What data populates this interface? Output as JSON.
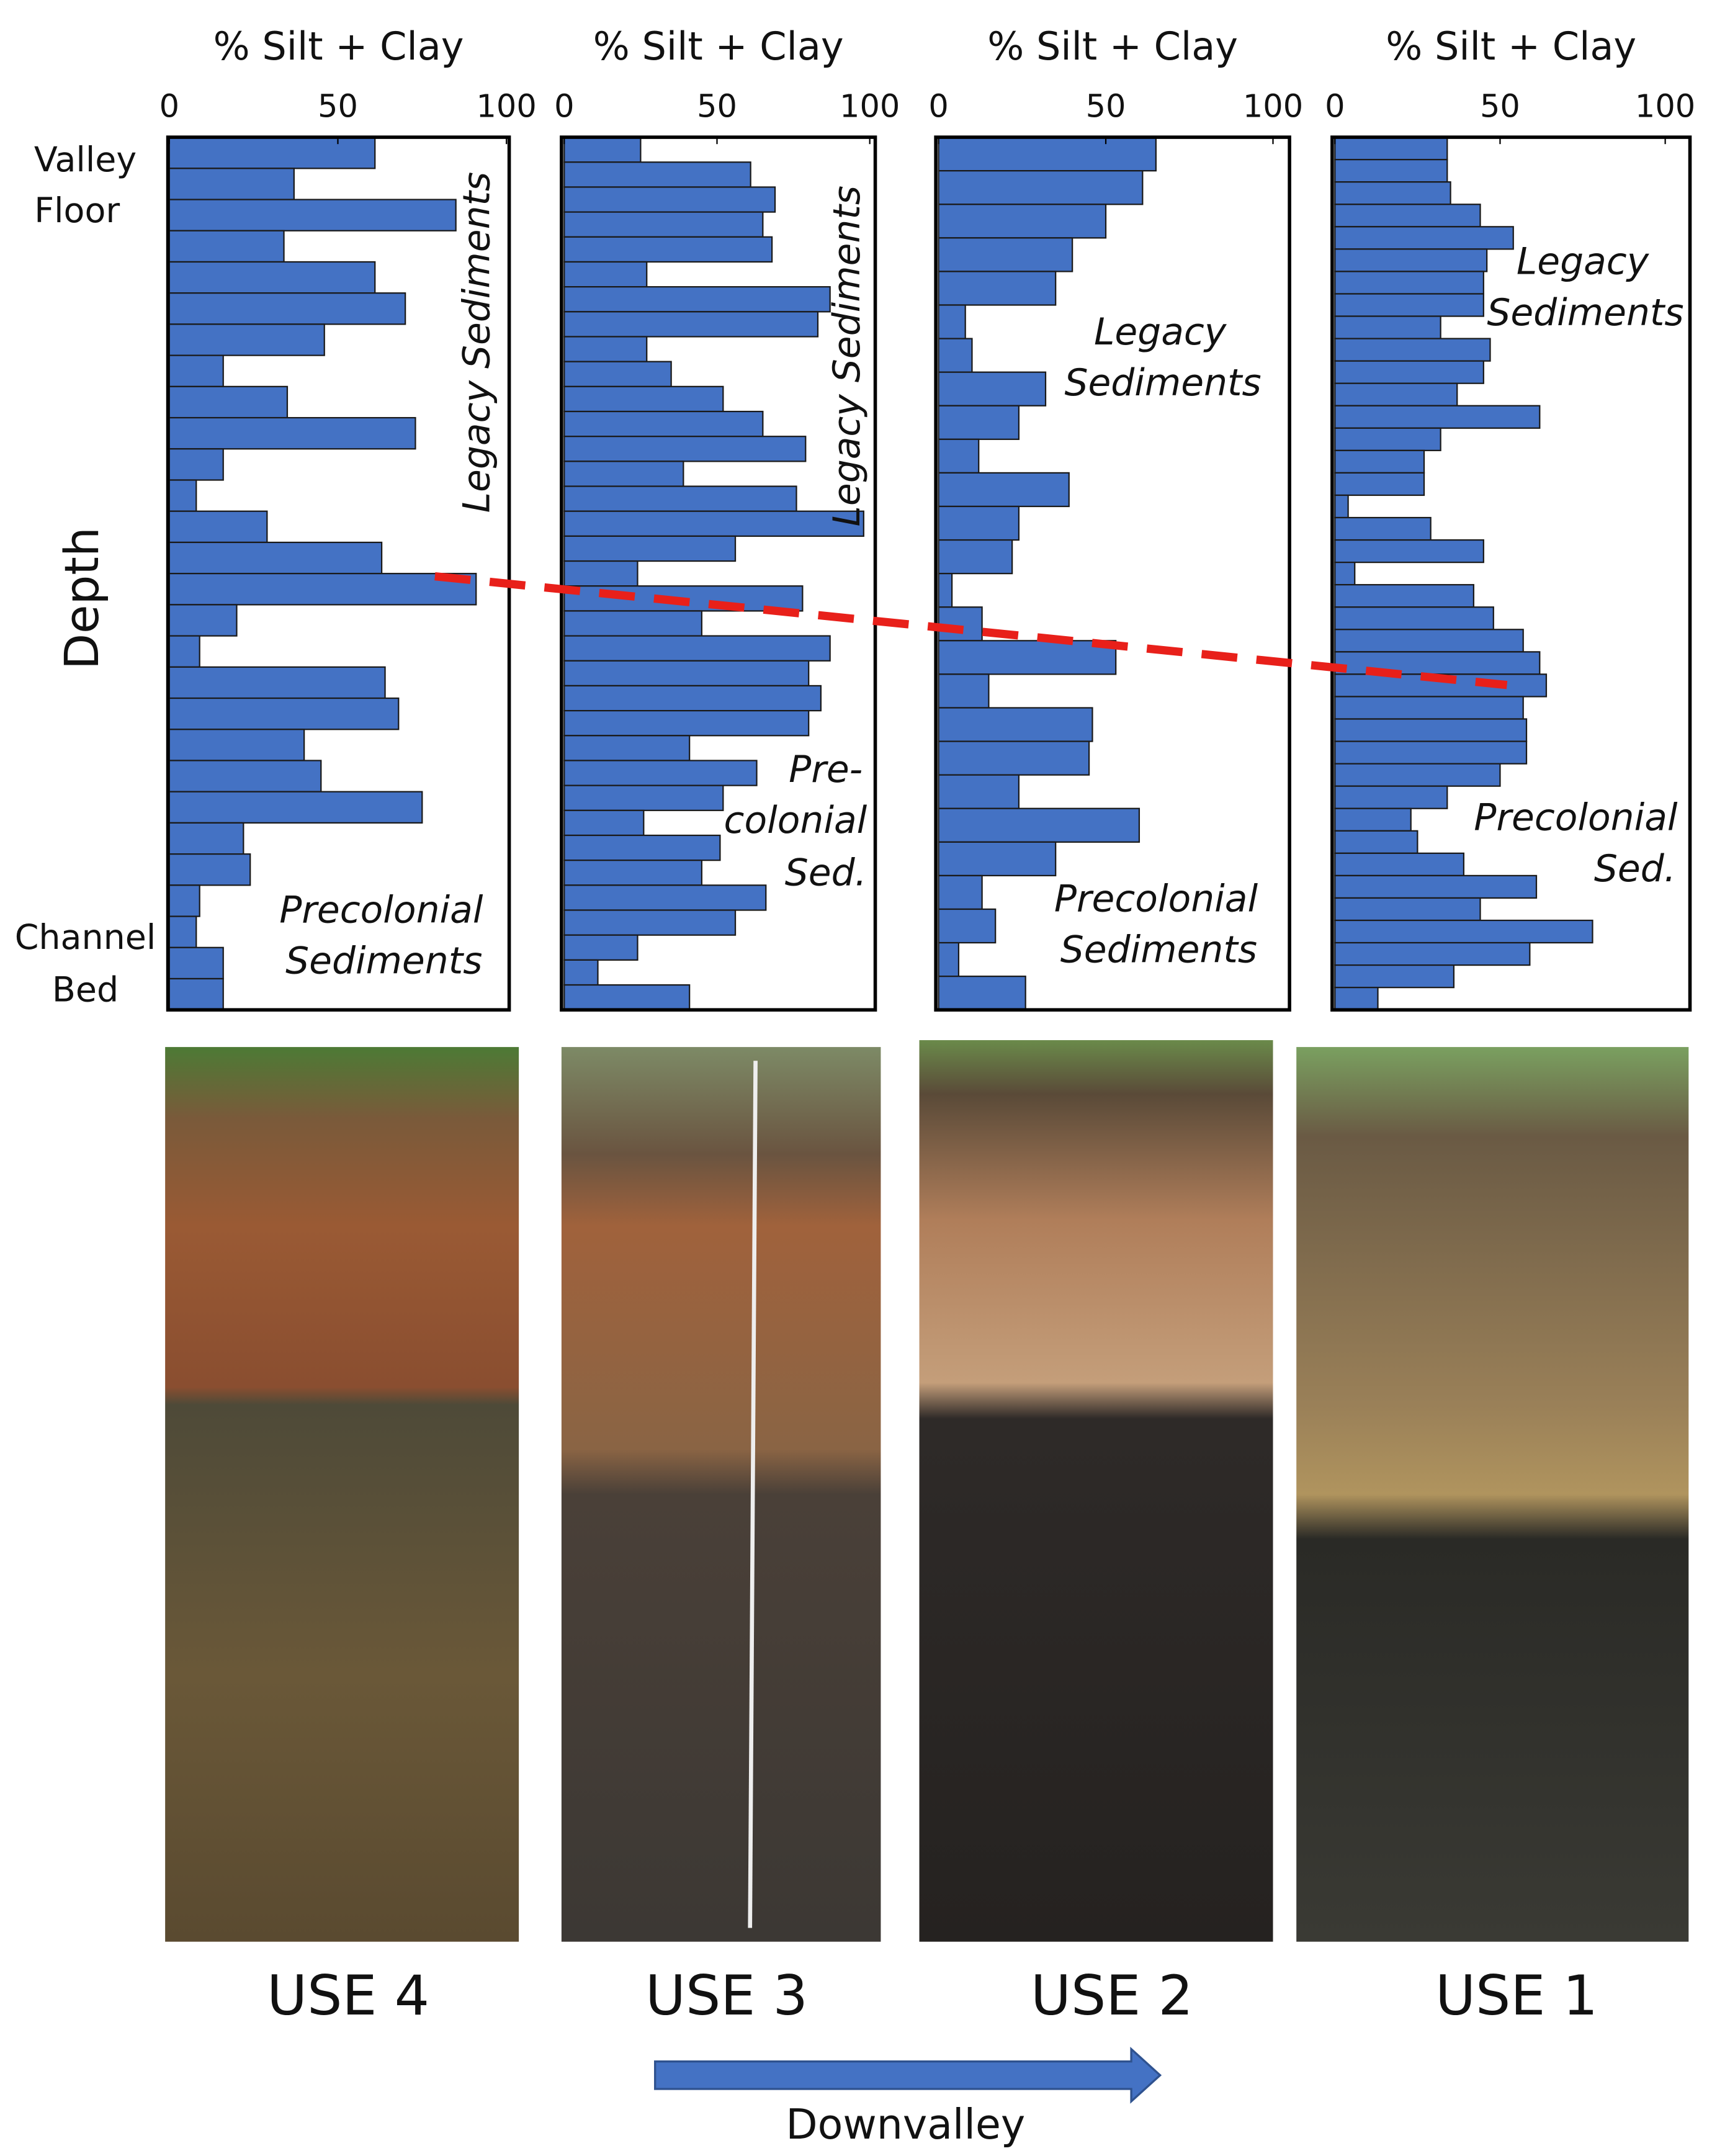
{
  "figure": {
    "ylabel": "Depth",
    "y_top_label": [
      "Valley",
      "Floor"
    ],
    "y_bottom_label": [
      "Channel",
      "Bed"
    ],
    "arrow_label": "Downvalley"
  },
  "chart_data": [
    {
      "type": "bar",
      "orientation": "horizontal",
      "xlabel": "% Silt + Clay",
      "xlim": [
        0,
        100
      ],
      "xticks": [
        0,
        50,
        100
      ],
      "color": "#4472c4",
      "caption": "USE 4",
      "annotations": [
        [
          "Legacy Sediments"
        ],
        [
          "Precolonial",
          "Sediments"
        ]
      ],
      "values": [
        61,
        37,
        85,
        34,
        61,
        70,
        46,
        16,
        35,
        73,
        16,
        8,
        29,
        63,
        91,
        20,
        9,
        64,
        68,
        40,
        45,
        75,
        22,
        24,
        9,
        8,
        16,
        16
      ]
    },
    {
      "type": "bar",
      "orientation": "horizontal",
      "xlabel": "% Silt + Clay",
      "xlim": [
        0,
        100
      ],
      "xticks": [
        0,
        50,
        100
      ],
      "color": "#4472c4",
      "caption": "USE 3",
      "annotations": [
        [
          "Legacy Sediments"
        ],
        [
          "Pre-",
          "colonial",
          "Sed."
        ]
      ],
      "values": [
        25,
        61,
        69,
        65,
        68,
        27,
        87,
        83,
        27,
        35,
        52,
        65,
        79,
        39,
        76,
        98,
        56,
        24,
        78,
        45,
        87,
        80,
        84,
        80,
        41,
        63,
        52,
        26,
        51,
        45,
        66,
        56,
        24,
        11,
        41
      ]
    },
    {
      "type": "bar",
      "orientation": "horizontal",
      "xlabel": "% Silt + Clay",
      "xlim": [
        0,
        100
      ],
      "xticks": [
        0,
        50,
        100
      ],
      "color": "#4472c4",
      "caption": "USE 2",
      "annotations": [
        [
          "Legacy",
          "Sediments"
        ],
        [
          "Precolonial",
          "Sediments"
        ]
      ],
      "values": [
        65,
        61,
        50,
        40,
        35,
        8,
        10,
        32,
        24,
        12,
        39,
        24,
        22,
        4,
        13,
        53,
        15,
        46,
        45,
        24,
        60,
        35,
        13,
        17,
        6,
        26
      ]
    },
    {
      "type": "bar",
      "orientation": "horizontal",
      "xlabel": "% Silt + Clay",
      "xlim": [
        0,
        100
      ],
      "xticks": [
        0,
        50,
        100
      ],
      "color": "#4472c4",
      "caption": "USE 1",
      "annotations": [
        [
          "Legacy",
          "Sediments"
        ],
        [
          "Precolonial",
          "Sed."
        ]
      ],
      "values": [
        34,
        34,
        35,
        44,
        54,
        46,
        45,
        45,
        32,
        47,
        45,
        37,
        62,
        32,
        27,
        27,
        4,
        29,
        45,
        6,
        42,
        48,
        57,
        62,
        64,
        57,
        58,
        58,
        50,
        34,
        23,
        25,
        39,
        61,
        44,
        78,
        59,
        36,
        13
      ]
    }
  ]
}
